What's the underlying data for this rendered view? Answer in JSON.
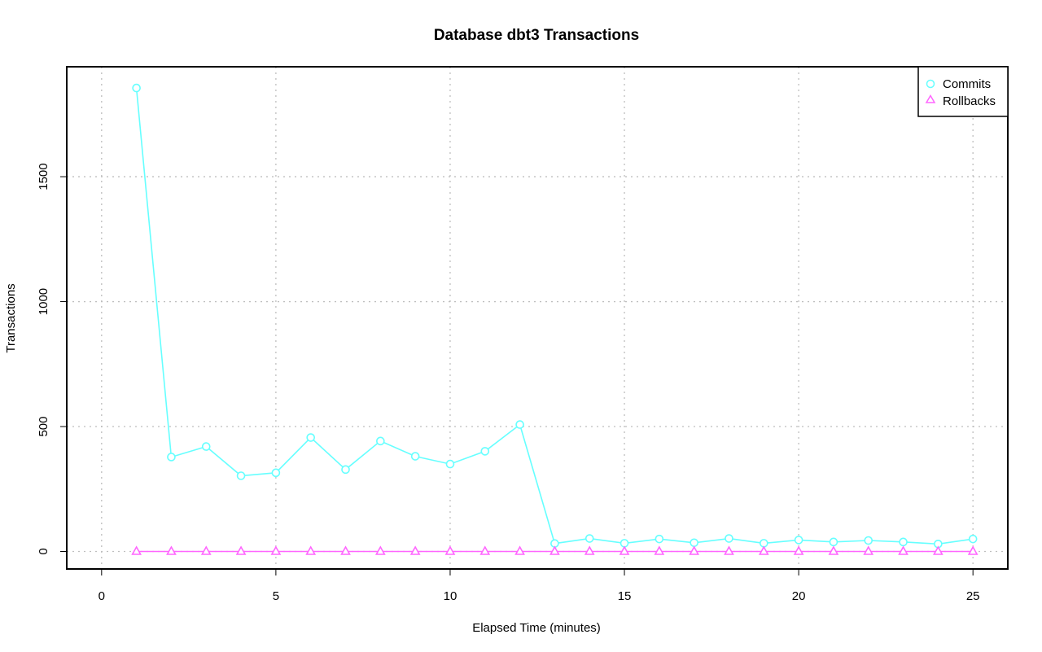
{
  "chart_data": {
    "type": "line",
    "title": "Database dbt3 Transactions",
    "xlabel": "Elapsed Time (minutes)",
    "ylabel": "Transactions",
    "xlim": [
      -1,
      26
    ],
    "ylim": [
      -70,
      1940
    ],
    "xticks": [
      0,
      5,
      10,
      15,
      20,
      25
    ],
    "yticks": [
      0,
      500,
      1000,
      1500
    ],
    "grid": true,
    "legend_position": "top-right",
    "x": [
      1,
      2,
      3,
      4,
      5,
      6,
      7,
      8,
      9,
      10,
      11,
      12,
      13,
      14,
      15,
      16,
      17,
      18,
      19,
      20,
      21,
      22,
      23,
      24,
      25
    ],
    "series": [
      {
        "name": "Commits",
        "color": "#66ffff",
        "marker": "circle",
        "values": [
          1855,
          378,
          420,
          303,
          315,
          456,
          328,
          442,
          381,
          350,
          401,
          508,
          32,
          52,
          33,
          50,
          35,
          52,
          33,
          46,
          38,
          44,
          38,
          30,
          50
        ]
      },
      {
        "name": "Rollbacks",
        "color": "#ff66ff",
        "marker": "triangle",
        "values": [
          0,
          0,
          0,
          0,
          0,
          0,
          0,
          0,
          0,
          0,
          0,
          0,
          0,
          0,
          0,
          0,
          0,
          0,
          0,
          0,
          0,
          0,
          0,
          0,
          0
        ]
      }
    ]
  }
}
